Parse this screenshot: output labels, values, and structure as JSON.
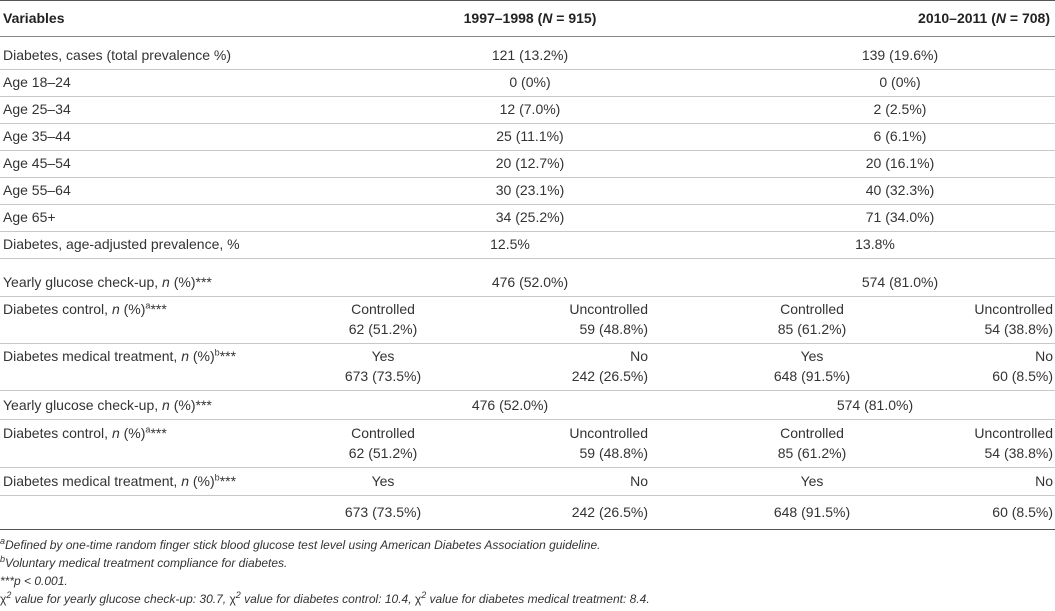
{
  "header": {
    "variables": "Variables",
    "col1_prefix": "1997–1998 (",
    "col1_n": "N",
    "col1_suffix": " = 915)",
    "col2_prefix": "2010–2011 (",
    "col2_n": "N",
    "col2_suffix": " = 708)"
  },
  "simple_rows": [
    {
      "label": "Diabetes, cases (total prevalence %)",
      "v1": "121 (13.2%)",
      "v2": "139 (19.6%)"
    },
    {
      "label": "Age 18–24",
      "v1": "0 (0%)",
      "v2": "0 (0%)"
    },
    {
      "label": "Age 25–34",
      "v1": "12 (7.0%)",
      "v2": "2 (2.5%)"
    },
    {
      "label": "Age 35–44",
      "v1": "25 (11.1%)",
      "v2": "6 (6.1%)"
    },
    {
      "label": "Age 45–54",
      "v1": "20 (12.7%)",
      "v2": "20 (16.1%)"
    },
    {
      "label": "Age 55–64",
      "v1": "30 (23.1%)",
      "v2": "40 (32.3%)"
    },
    {
      "label": "Age 65+",
      "v1": "34 (25.2%)",
      "v2": "71 (34.0%)"
    },
    {
      "label": "Diabetes, age-adjusted prevalence, %",
      "v1": "12.5%",
      "v2": "13.8%"
    }
  ],
  "glucose1": {
    "label": "Yearly glucose check-up, ",
    "n": "n",
    "rest": " (%)***",
    "v1": "476 (52.0%)",
    "v2": "574 (81.0%)"
  },
  "control1": {
    "label": "Diabetes control, ",
    "n": "n",
    "rest": " (%)",
    "sup": "a",
    "stars": "***",
    "a_label": "Controlled",
    "a_val": "62 (51.2%)",
    "b_label": "Uncontrolled",
    "b_val": "59 (48.8%)",
    "c_label": "Controlled",
    "c_val": "85 (61.2%)",
    "d_label": "Uncontrolled",
    "d_val": "54 (38.8%)"
  },
  "treatment1": {
    "label": "Diabetes medical treatment, ",
    "n": "n",
    "rest": " (%)",
    "sup": "b",
    "stars": "***",
    "a_label": "Yes",
    "a_val": "673 (73.5%)",
    "b_label": "No",
    "b_val": "242 (26.5%)",
    "c_label": "Yes",
    "c_val": "648 (91.5%)",
    "d_label": "No",
    "d_val": "60 (8.5%)"
  },
  "glucose2": {
    "label": "Yearly glucose check-up, ",
    "n": "n",
    "rest": " (%)***",
    "v1": "476 (52.0%)",
    "v2": "574 (81.0%)"
  },
  "control2": {
    "label": "Diabetes control, ",
    "n": "n",
    "rest": " (%)",
    "sup": "a",
    "stars": "***",
    "a_label": "Controlled",
    "a_val": "62 (51.2%)",
    "b_label": "Uncontrolled",
    "b_val": "59 (48.8%)",
    "c_label": "Controlled",
    "c_val": "85 (61.2%)",
    "d_label": "Uncontrolled",
    "d_val": "54 (38.8%)"
  },
  "treatment2": {
    "label": "Diabetes medical treatment, ",
    "n": "n",
    "rest": " (%)",
    "sup": "b",
    "stars": "***",
    "a_label": "Yes",
    "a_val": "673 (73.5%)",
    "b_label": "No",
    "b_val": "242 (26.5%)",
    "c_label": "Yes",
    "c_val": "648 (91.5%)",
    "d_label": "No",
    "d_val": "60 (8.5%)"
  },
  "footnotes": {
    "a_mark": "a",
    "a_text": "Defined by one-time random finger stick blood glucose test level using American Diabetes Association guideline.",
    "b_mark": "b",
    "b_text": "Voluntary medical treatment compliance for diabetes.",
    "p_text": "***p < 0.001.",
    "chi_symbol": "χ",
    "chi_sup": "2",
    "chi_1": " value for yearly glucose check-up: 30.7, ",
    "chi_2": " value for diabetes control: 10.4, ",
    "chi_3": " value for diabetes medical treatment: 8.4."
  }
}
